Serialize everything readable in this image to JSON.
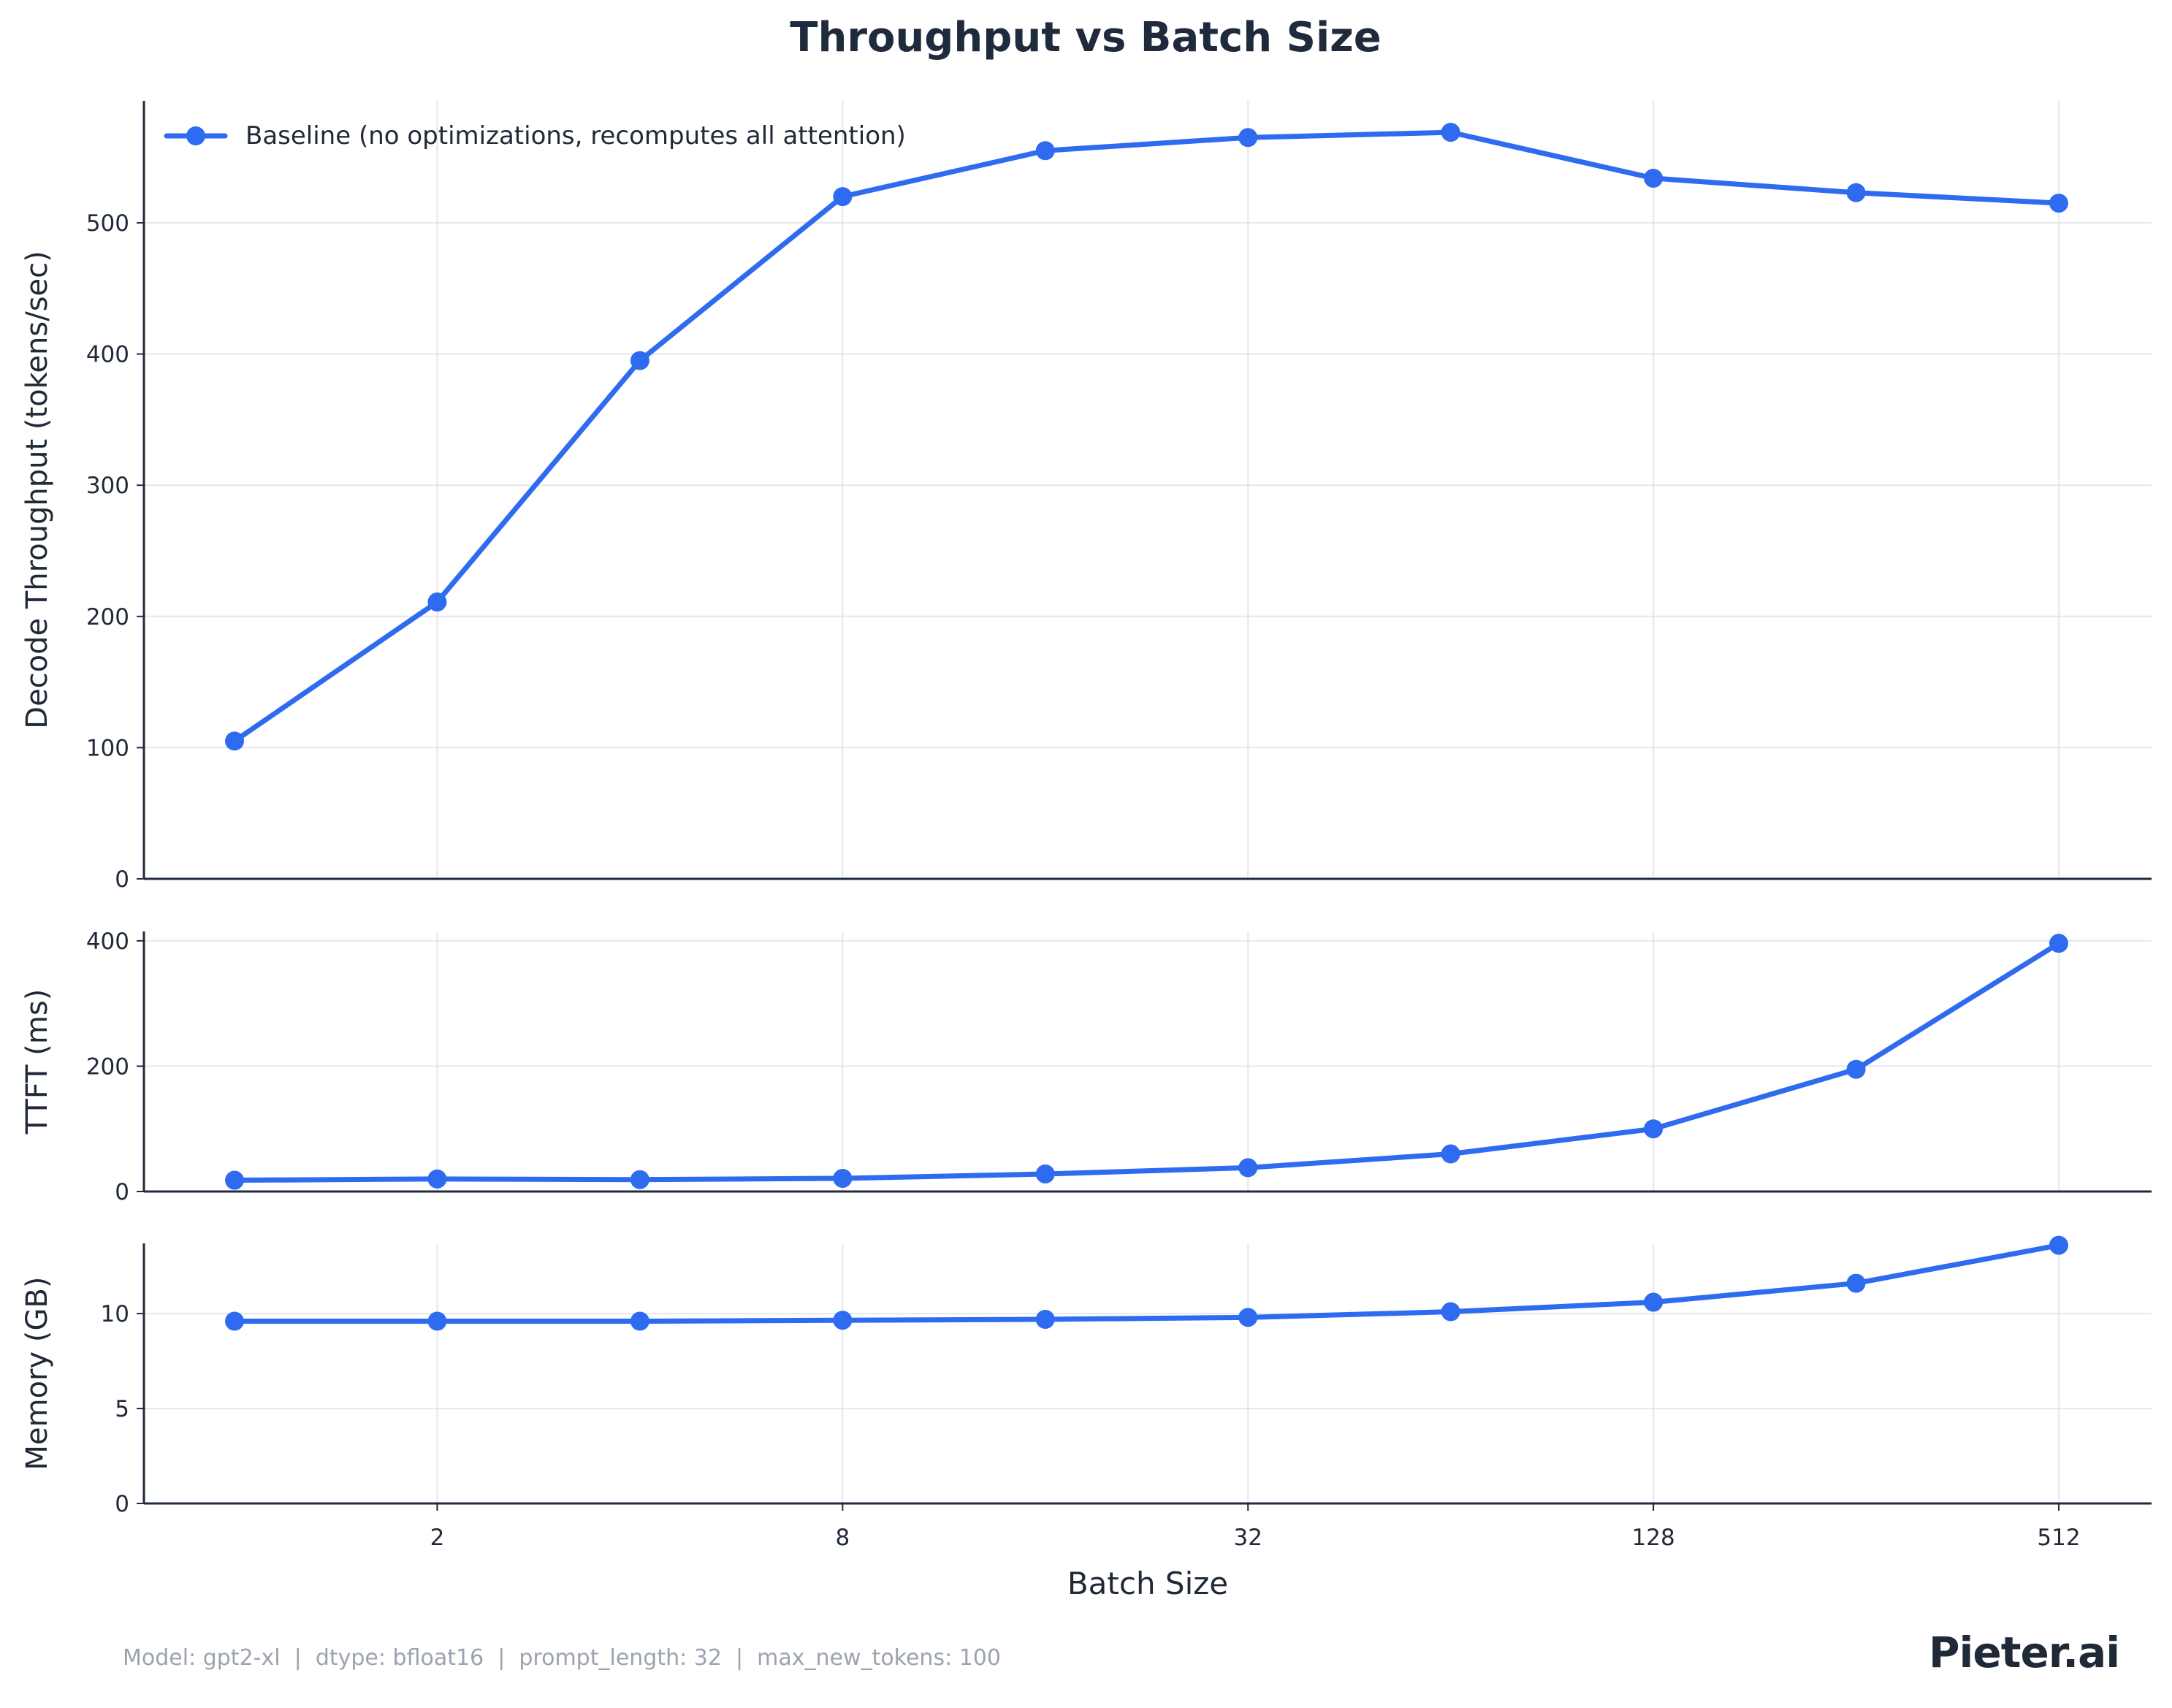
{
  "chart_data": {
    "type": "line",
    "title": "Throughput vs Batch Size",
    "xlabel": "Batch Size",
    "x_scale": "log2",
    "x": [
      1,
      2,
      4,
      8,
      16,
      32,
      64,
      128,
      256,
      512
    ],
    "xticks": [
      "2",
      "8",
      "32",
      "128",
      "512"
    ],
    "xtick_values": [
      2,
      8,
      32,
      128,
      512
    ],
    "legend": {
      "label": "Baseline (no optimizations, recomputes all attention)",
      "position": "top-left"
    },
    "color": "#2f6bf0",
    "panels": [
      {
        "id": "throughput",
        "ylabel": "Decode Throughput (tokens/sec)",
        "ylim": [
          0,
          593
        ],
        "yticks": [
          0,
          100,
          200,
          300,
          400,
          500
        ],
        "values": [
          105,
          211,
          395,
          520,
          555,
          565,
          569,
          534,
          523,
          515
        ]
      },
      {
        "id": "ttft",
        "ylabel": "TTFT (ms)",
        "ylim": [
          0,
          415
        ],
        "yticks": [
          0,
          200,
          400
        ],
        "values": [
          18,
          20,
          19,
          21,
          28,
          38,
          60,
          100,
          195,
          396
        ]
      },
      {
        "id": "memory",
        "ylabel": "Memory (GB)",
        "ylim": [
          0,
          13.7
        ],
        "yticks": [
          0,
          5,
          10
        ],
        "values": [
          9.6,
          9.6,
          9.6,
          9.65,
          9.7,
          9.8,
          10.1,
          10.6,
          11.6,
          13.6
        ]
      }
    ]
  },
  "footer": "Model: gpt2-xl  |  dtype: bfloat16  |  prompt_length: 32  |  max_new_tokens: 100",
  "brand": "Pieter.ai"
}
